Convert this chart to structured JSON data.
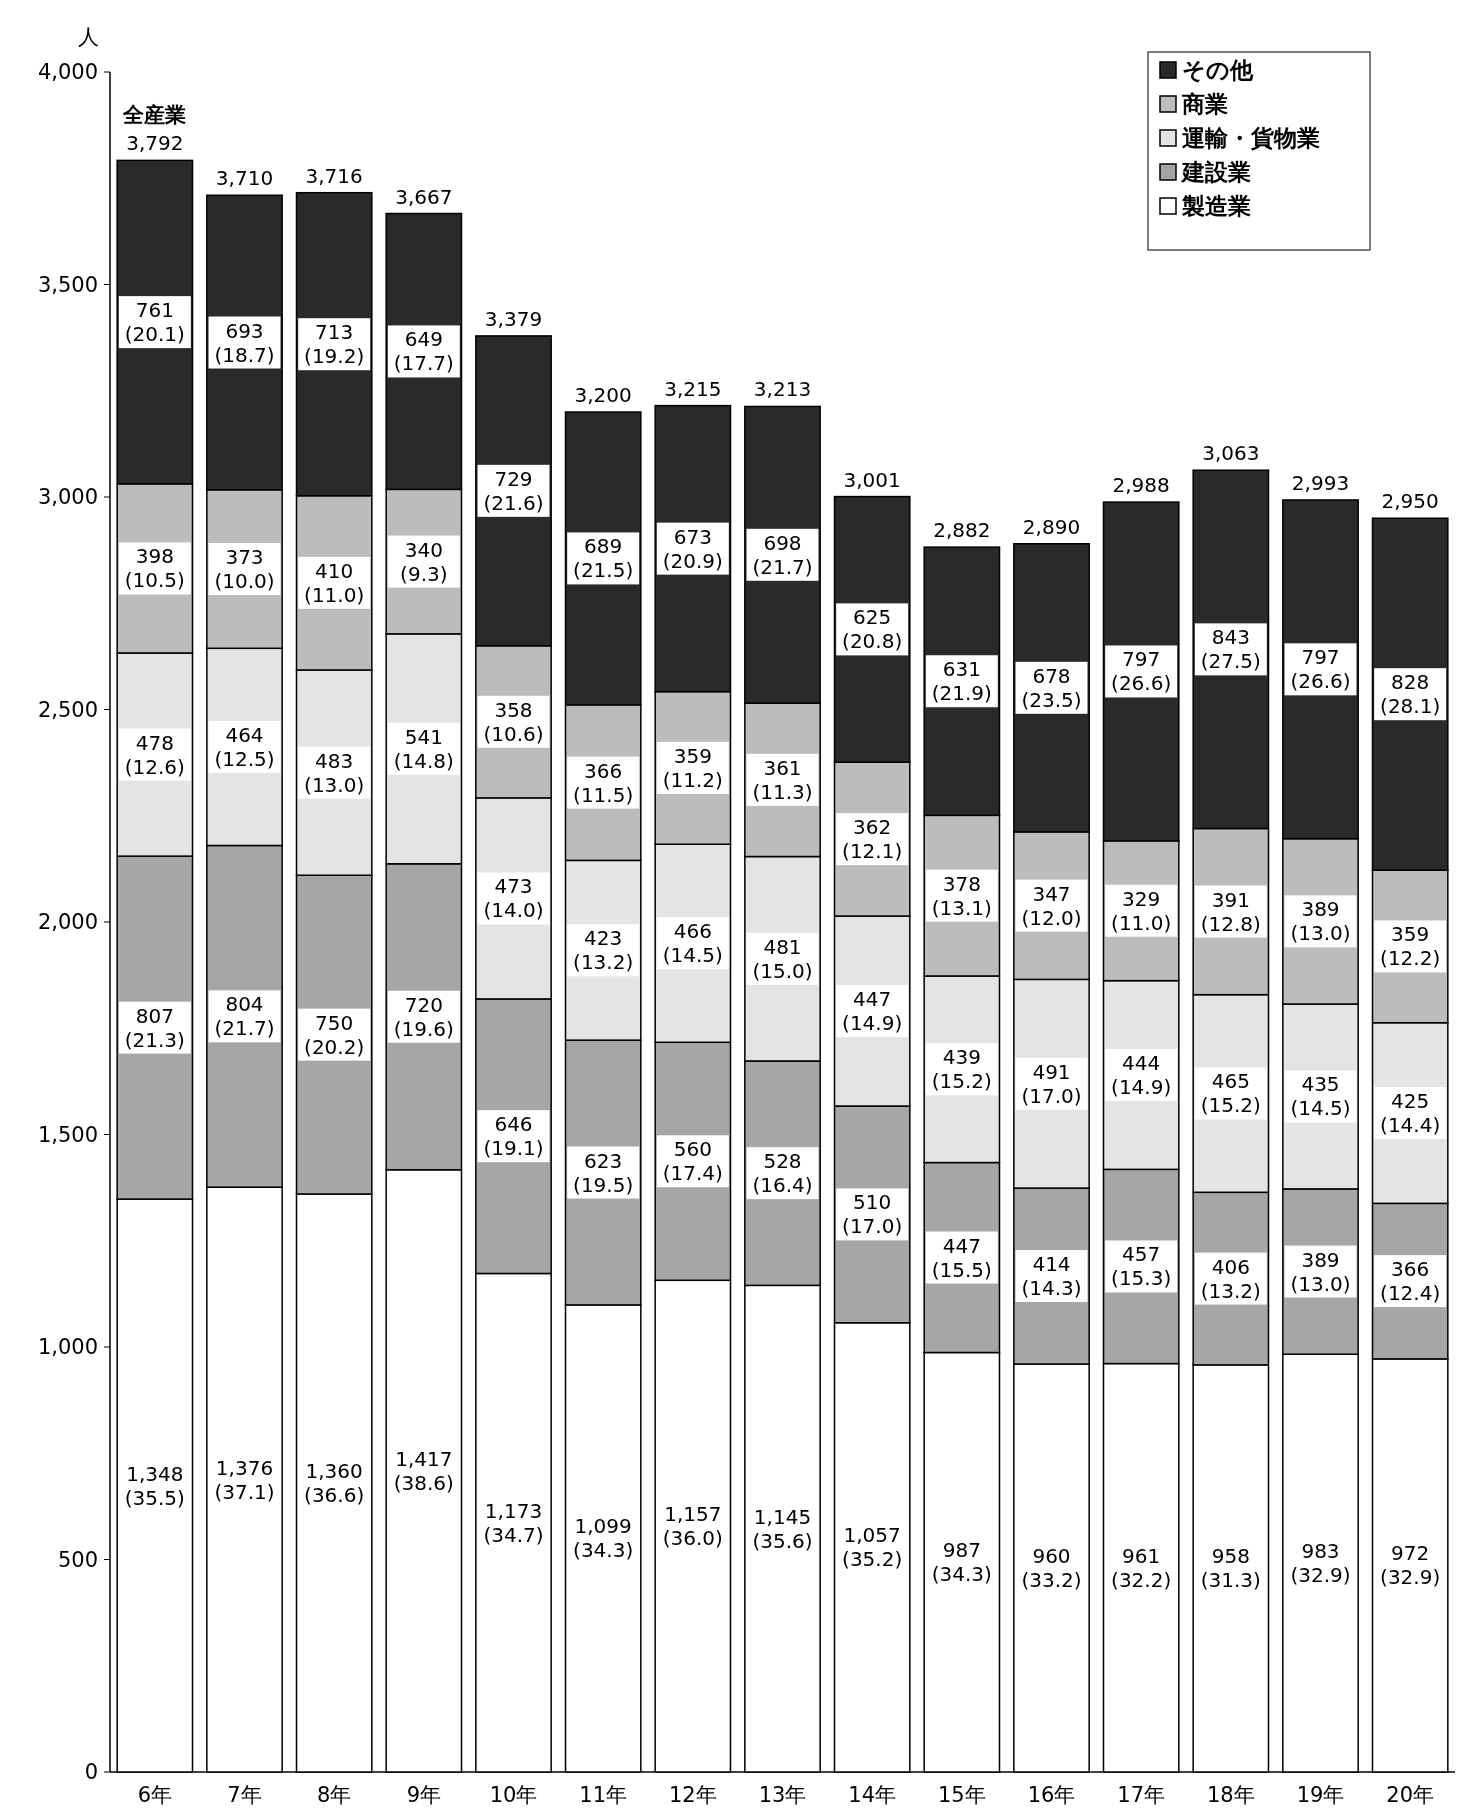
{
  "chart_data": {
    "type": "bar",
    "stacked": true,
    "ylabel": "人",
    "legend": "top right",
    "categories": [
      "6年",
      "7年",
      "8年",
      "9年",
      "10年",
      "11年",
      "12年",
      "13年",
      "14年",
      "15年",
      "16年",
      "17年",
      "18年",
      "19年",
      "20年"
    ],
    "ylim": [
      0,
      4000
    ],
    "yticks": [
      0,
      500,
      {
        "value": 1000,
        "label": "1,000"
      },
      {
        "value": 1500,
        "label": "1,500"
      },
      {
        "value": 2000,
        "label": "2,000"
      },
      {
        "value": 2500,
        "label": "2,500"
      },
      {
        "value": 3000,
        "label": "3,000"
      },
      {
        "value": 3500,
        "label": "3,500"
      },
      {
        "value": 4000,
        "label": "4,000"
      }
    ],
    "series": [
      {
        "name": "製造業",
        "color": "#ffffff",
        "values": [
          1348,
          1376,
          1360,
          1417,
          1173,
          1099,
          1157,
          1145,
          1057,
          987,
          960,
          961,
          958,
          983,
          972
        ],
        "value_labels": [
          "1,348\n(35.5)",
          "1,376\n(37.1)",
          "1,360\n(36.6)",
          "1,417\n(38.6)",
          "1,173\n(34.7)",
          "1,099\n(34.3)",
          "1,157\n(36.0)",
          "1,145\n(35.6)",
          "1,057\n(35.2)",
          "987\n(34.3)",
          "960\n(33.2)",
          "961\n(32.2)",
          "958\n(31.3)",
          "983\n(32.9)",
          "972\n(32.9)"
        ]
      },
      {
        "name": "建設業",
        "color": "#a6a6a6",
        "values": [
          807,
          804,
          750,
          720,
          646,
          623,
          560,
          528,
          510,
          447,
          414,
          457,
          406,
          389,
          366
        ],
        "value_labels": [
          "807\n(21.3)",
          "804\n(21.7)",
          "750\n(20.2)",
          "720\n(19.6)",
          "646\n(19.1)",
          "623\n(19.5)",
          "560\n(17.4)",
          "528\n(16.4)",
          "510\n(17.0)",
          "447\n(15.5)",
          "414\n(14.3)",
          "457\n(15.3)",
          "406\n(13.2)",
          "389\n(13.0)",
          "366\n(12.4)"
        ]
      },
      {
        "name": "運輸・貨物業",
        "color": "#e4e4e4",
        "values": [
          478,
          464,
          483,
          541,
          473,
          423,
          466,
          481,
          447,
          439,
          491,
          444,
          465,
          435,
          425
        ],
        "value_labels": [
          "478\n(12.6)",
          "464\n(12.5)",
          "483\n(13.0)",
          "541\n(14.8)",
          "473\n(14.0)",
          "423\n(13.2)",
          "466\n(14.5)",
          "481\n(15.0)",
          "447\n(14.9)",
          "439\n(15.2)",
          "491\n(17.0)",
          "444\n(14.9)",
          "465\n(15.2)",
          "435\n(14.5)",
          "425\n(14.4)"
        ]
      },
      {
        "name": "商業",
        "color": "#bcbcbc",
        "values": [
          398,
          373,
          410,
          340,
          358,
          366,
          359,
          361,
          362,
          378,
          347,
          329,
          391,
          389,
          359
        ],
        "value_labels": [
          "398\n(10.5)",
          "373\n(10.0)",
          "410\n(11.0)",
          "340\n(9.3)",
          "358\n(10.6)",
          "366\n(11.5)",
          "359\n(11.2)",
          "361\n(11.3)",
          "362\n(12.1)",
          "378\n(13.1)",
          "347\n(12.0)",
          "329\n(11.0)",
          "391\n(12.8)",
          "389\n(13.0)",
          "359\n(12.2)"
        ]
      },
      {
        "name": "その他",
        "color": "#2a2a2a",
        "values": [
          761,
          693,
          713,
          649,
          729,
          689,
          673,
          698,
          625,
          631,
          678,
          797,
          843,
          797,
          828
        ],
        "value_labels": [
          "761\n(20.1)",
          "693\n(18.7)",
          "713\n(19.2)",
          "649\n(17.7)",
          "729\n(21.6)",
          "689\n(21.5)",
          "673\n(20.9)",
          "698\n(21.7)",
          "625\n(20.8)",
          "631\n(21.9)",
          "678\n(23.5)",
          "797\n(26.6)",
          "843\n(27.5)",
          "797\n(26.6)",
          "828\n(28.1)"
        ]
      }
    ],
    "totals": [
      "3,792",
      "3,710",
      "3,716",
      "3,667",
      "3,379",
      "3,200",
      "3,215",
      "3,213",
      "3,001",
      "2,882",
      "2,890",
      "2,988",
      "3,063",
      "2,993",
      "2,950"
    ],
    "annotations": [
      {
        "text": "全産業",
        "x": "6年",
        "y": 3792
      }
    ]
  }
}
